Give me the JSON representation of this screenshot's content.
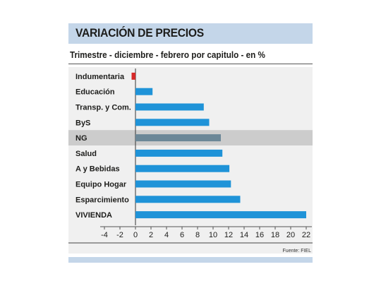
{
  "title": "VARIACIÓN DE PRECIOS",
  "subtitle": "Trimestre - diciembre - febrero por capitulo - en %",
  "source": "Fuente: FIEL",
  "colors": {
    "title_band": "#c4d6e9",
    "bar": "#1f93d8",
    "highlight_bar": "#6b8797",
    "negative_bar": "#d62828",
    "highlight_row": "#cccccc",
    "plot_bg": "#f0f0f0"
  },
  "chart_data": {
    "type": "bar",
    "orientation": "horizontal",
    "title": "VARIACIÓN DE PRECIOS",
    "subtitle": "Trimestre - diciembre - febrero por capitulo - en %",
    "categories": [
      "Indumentaria",
      "Educación",
      "Transp. y Com.",
      "ByS",
      "NG",
      "Salud",
      "A y Bebidas",
      "Equipo Hogar",
      "Esparcimiento",
      "VIVIENDA"
    ],
    "values": [
      -0.5,
      2.2,
      8.8,
      9.5,
      11.0,
      11.2,
      12.1,
      12.3,
      13.5,
      22.0
    ],
    "highlight": "NG",
    "xlim": [
      -4,
      22
    ],
    "xticks": [
      "-4",
      "-2",
      "0",
      "2",
      "4",
      "6",
      "8",
      "10",
      "12",
      "14",
      "16",
      "18",
      "20",
      "22"
    ],
    "grid": false,
    "legend": "none"
  }
}
